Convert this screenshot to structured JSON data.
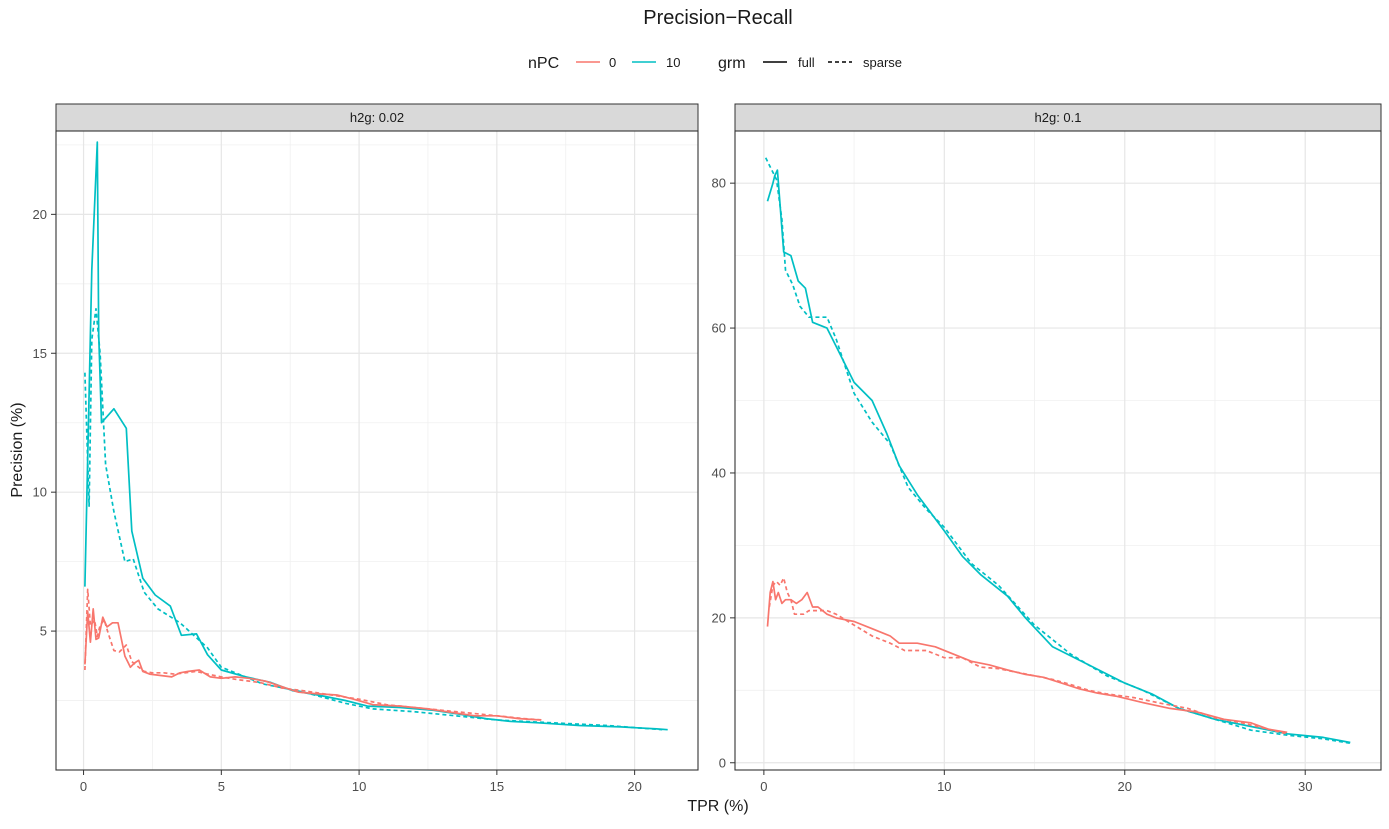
{
  "chart_data": {
    "type": "line",
    "title": "Precision−Recall",
    "xlabel": "TPR (%)",
    "ylabel": "Precision (%)",
    "grid": true,
    "legend_position": "top",
    "legend": {
      "npc": {
        "title": "nPC",
        "entries": [
          {
            "label": "0",
            "color": "#F8766D"
          },
          {
            "label": "10",
            "color": "#00BFC4"
          }
        ]
      },
      "grm": {
        "title": "grm",
        "entries": [
          {
            "label": "full",
            "linetype": "solid"
          },
          {
            "label": "sparse",
            "linetype": "dashed"
          }
        ]
      }
    },
    "panels": [
      {
        "strip": "h2g: 0.02",
        "xlim": [
          -1,
          22.3
        ],
        "ylim": [
          0,
          23
        ],
        "xticks": [
          0,
          5,
          10,
          15,
          20
        ],
        "yticks": [
          5,
          10,
          15,
          20
        ],
        "series": [
          {
            "npc": "10",
            "grm": "full",
            "x": [
              0.05,
              0.3,
              0.5,
              0.55,
              0.65,
              1.1,
              1.55,
              1.75,
              2.15,
              2.6,
              3.15,
              3.55,
              4.1,
              4.5,
              5.0,
              5.9,
              6.8,
              7.6,
              8.5,
              9.5,
              10.3,
              11.5,
              12.7,
              13.7,
              14.6,
              15.5,
              16.5,
              18.0,
              19.5,
              20.8,
              21.2
            ],
            "y": [
              6.6,
              18.0,
              22.6,
              15.7,
              12.5,
              13.0,
              12.3,
              8.6,
              6.9,
              6.3,
              5.9,
              4.85,
              4.9,
              4.15,
              3.6,
              3.35,
              3.15,
              2.85,
              2.7,
              2.5,
              2.3,
              2.25,
              2.15,
              2.0,
              1.85,
              1.75,
              1.7,
              1.6,
              1.55,
              1.48,
              1.45
            ]
          },
          {
            "npc": "10",
            "grm": "sparse",
            "x": [
              0.05,
              0.2,
              0.3,
              0.45,
              0.6,
              0.8,
              1.1,
              1.5,
              1.8,
              2.2,
              2.7,
              3.5,
              4.5,
              5.0,
              6.5,
              8.0,
              9.5,
              10.5,
              12.0,
              13.5,
              15.0,
              17.0,
              19.0,
              21.0
            ],
            "y": [
              14.3,
              9.5,
              15.5,
              16.6,
              15.0,
              11.0,
              9.3,
              7.5,
              7.6,
              6.4,
              5.8,
              5.3,
              4.4,
              3.7,
              3.1,
              2.8,
              2.4,
              2.2,
              2.1,
              1.95,
              1.8,
              1.7,
              1.6,
              1.45
            ]
          },
          {
            "npc": "0",
            "grm": "full",
            "x": [
              0.05,
              0.15,
              0.25,
              0.35,
              0.45,
              0.55,
              0.7,
              0.85,
              1.05,
              1.25,
              1.5,
              1.7,
              1.85,
              2.0,
              2.15,
              2.4,
              2.8,
              3.2,
              3.5,
              3.8,
              4.2,
              4.6,
              5.0,
              5.5,
              6.0,
              6.6,
              7.2,
              7.8,
              8.4,
              9.2,
              9.8,
              10.5,
              11.5,
              12.5,
              13.5,
              14.2,
              15.0,
              15.8,
              16.6
            ],
            "y": [
              3.8,
              5.7,
              4.6,
              5.8,
              4.7,
              4.75,
              5.5,
              5.15,
              5.3,
              5.3,
              4.1,
              3.7,
              3.85,
              3.95,
              3.55,
              3.45,
              3.4,
              3.35,
              3.5,
              3.55,
              3.6,
              3.35,
              3.3,
              3.35,
              3.3,
              3.2,
              3.0,
              2.8,
              2.75,
              2.7,
              2.55,
              2.35,
              2.3,
              2.2,
              2.05,
              1.95,
              1.95,
              1.85,
              1.8
            ]
          },
          {
            "npc": "0",
            "grm": "sparse",
            "x": [
              0.05,
              0.15,
              0.25,
              0.4,
              0.5,
              0.6,
              0.75,
              0.9,
              1.1,
              1.3,
              1.55,
              1.75,
              2.0,
              2.2,
              2.5,
              2.9,
              3.3,
              3.7,
              4.1,
              4.5,
              5.0,
              5.6,
              6.4,
              7.2,
              8.0,
              9.0,
              10.0,
              11.0,
              12.5,
              14.0,
              15.0,
              16.0,
              16.7
            ],
            "y": [
              3.6,
              6.5,
              5.2,
              5.4,
              4.8,
              5.2,
              5.4,
              4.9,
              4.3,
              4.25,
              4.5,
              3.9,
              3.7,
              3.55,
              3.5,
              3.5,
              3.45,
              3.5,
              3.55,
              3.45,
              3.35,
              3.25,
              3.15,
              2.95,
              2.85,
              2.7,
              2.55,
              2.35,
              2.2,
              2.05,
              1.95,
              1.85,
              1.8
            ]
          }
        ]
      },
      {
        "strip": "h2g: 0.1",
        "xlim": [
          -1.6,
          34.2
        ],
        "ylim": [
          -1,
          87.2
        ],
        "xticks": [
          0,
          10,
          20,
          30
        ],
        "yticks": [
          0,
          20,
          40,
          60,
          80
        ],
        "series": [
          {
            "npc": "10",
            "grm": "full",
            "x": [
              0.2,
              0.5,
              0.6,
              0.75,
              1.1,
              1.5,
              1.9,
              2.3,
              2.7,
              3.5,
              4.0,
              5.0,
              6.0,
              6.8,
              7.5,
              8.5,
              10.0,
              11.0,
              12.0,
              13.5,
              14.5,
              16.0,
              18.0,
              20.0,
              21.5,
              23.0,
              25.0,
              27.0,
              29.0,
              31.0,
              32.5
            ],
            "y": [
              77.5,
              80.0,
              81.0,
              81.8,
              70.5,
              70.0,
              66.5,
              65.5,
              60.8,
              60.0,
              57.5,
              52.5,
              50.0,
              45.5,
              41.0,
              37.0,
              32.0,
              28.5,
              26.0,
              23.0,
              20.0,
              16.0,
              13.5,
              11.0,
              9.5,
              7.5,
              6.0,
              5.0,
              4.0,
              3.5,
              2.8
            ]
          },
          {
            "npc": "10",
            "grm": "sparse",
            "x": [
              0.1,
              0.4,
              0.7,
              1.0,
              1.2,
              1.6,
              2.0,
              2.5,
              3.0,
              3.5,
              4.0,
              5.0,
              6.0,
              7.0,
              8.0,
              9.0,
              10.0,
              11.5,
              13.0,
              15.0,
              17.0,
              19.0,
              21.0,
              23.0,
              25.0,
              27.0,
              29.0,
              31.0,
              32.5
            ],
            "y": [
              83.5,
              82.0,
              80.5,
              75.0,
              68.0,
              66.0,
              63.0,
              61.5,
              61.5,
              61.5,
              58.5,
              51.0,
              47.0,
              44.0,
              38.0,
              35.0,
              32.5,
              27.5,
              24.5,
              19.0,
              15.0,
              12.0,
              10.0,
              7.5,
              6.0,
              4.5,
              3.8,
              3.3,
              2.7
            ]
          },
          {
            "npc": "0",
            "grm": "full",
            "x": [
              0.2,
              0.35,
              0.5,
              0.65,
              0.8,
              1.0,
              1.2,
              1.5,
              1.8,
              2.1,
              2.4,
              2.7,
              3.0,
              3.5,
              4.0,
              5.0,
              6.0,
              7.0,
              7.5,
              8.5,
              9.5,
              10.5,
              11.5,
              12.5,
              13.5,
              14.5,
              15.5,
              16.5,
              17.5,
              18.5,
              19.5,
              21.0,
              22.5,
              24.0,
              25.5,
              27.0,
              28.0,
              29.0
            ],
            "y": [
              18.8,
              23.5,
              25.0,
              22.5,
              23.5,
              22.0,
              22.5,
              22.5,
              22.0,
              22.5,
              23.5,
              21.5,
              21.5,
              20.5,
              20.0,
              19.5,
              18.5,
              17.5,
              16.5,
              16.5,
              16.0,
              15.0,
              14.0,
              13.5,
              12.8,
              12.2,
              11.8,
              11.0,
              10.2,
              9.6,
              9.2,
              8.3,
              7.5,
              7.0,
              6.0,
              5.5,
              4.6,
              4.2
            ]
          },
          {
            "npc": "0",
            "grm": "sparse",
            "x": [
              0.3,
              0.5,
              0.7,
              0.9,
              1.1,
              1.3,
              1.5,
              1.7,
              1.9,
              2.2,
              2.5,
              3.0,
              3.5,
              4.0,
              5.0,
              6.0,
              7.0,
              7.8,
              9.0,
              10.0,
              11.0,
              12.0,
              13.0,
              14.0,
              15.0,
              16.0,
              17.0,
              18.0,
              19.0,
              20.5,
              22.0,
              23.5,
              25.0,
              26.5,
              28.0,
              29.0
            ],
            "y": [
              21.5,
              24.5,
              25.0,
              24.5,
              25.5,
              23.5,
              22.5,
              20.5,
              20.5,
              20.5,
              21.0,
              21.0,
              21.0,
              20.5,
              19.0,
              17.5,
              16.5,
              15.5,
              15.5,
              14.5,
              14.5,
              13.2,
              13.0,
              12.5,
              12.0,
              11.5,
              10.8,
              10.0,
              9.5,
              9.0,
              8.2,
              7.5,
              6.2,
              5.5,
              4.6,
              4.0
            ]
          }
        ]
      }
    ]
  }
}
